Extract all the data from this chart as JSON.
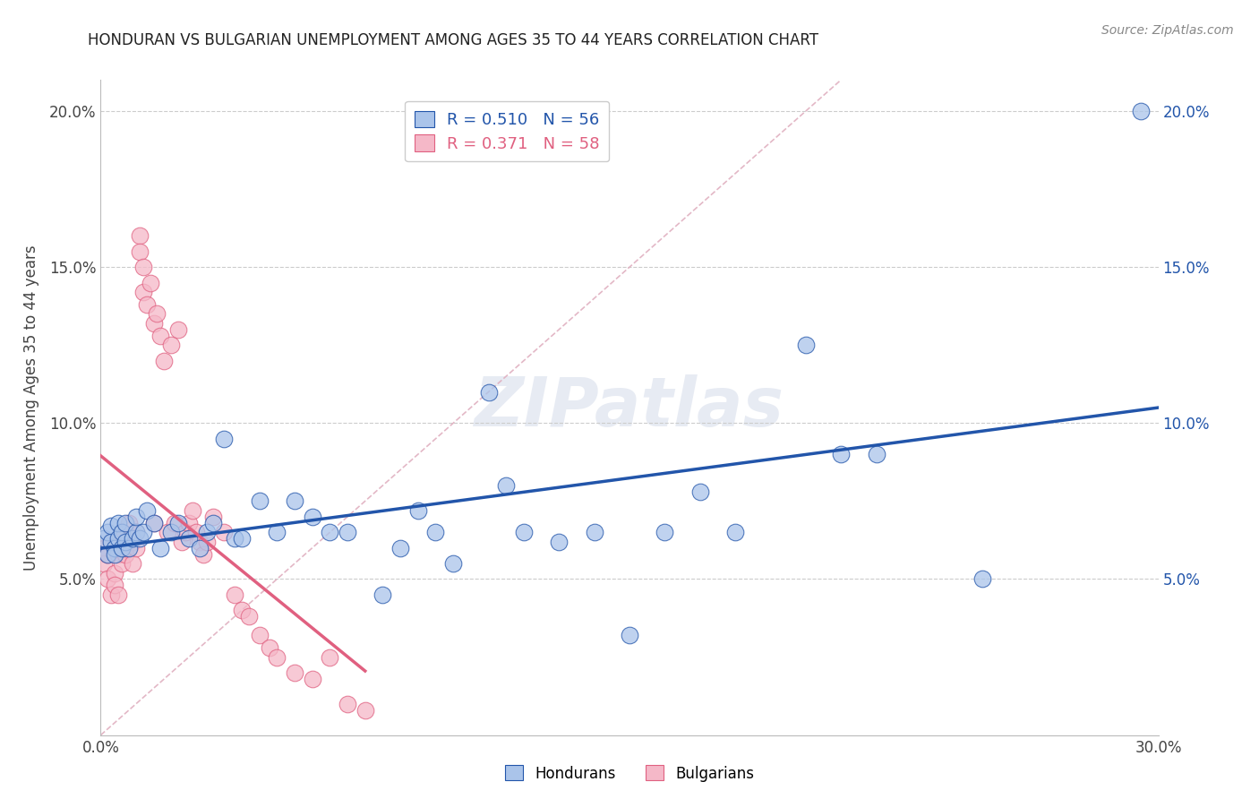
{
  "title": "HONDURAN VS BULGARIAN UNEMPLOYMENT AMONG AGES 35 TO 44 YEARS CORRELATION CHART",
  "source": "Source: ZipAtlas.com",
  "ylabel": "Unemployment Among Ages 35 to 44 years",
  "xlim": [
    0.0,
    0.3
  ],
  "ylim": [
    0.0,
    0.21
  ],
  "xticks": [
    0.0,
    0.05,
    0.1,
    0.15,
    0.2,
    0.25,
    0.3
  ],
  "xticklabels": [
    "0.0%",
    "",
    "",
    "",
    "",
    "",
    "30.0%"
  ],
  "yticks": [
    0.05,
    0.1,
    0.15,
    0.2
  ],
  "yticklabels": [
    "5.0%",
    "10.0%",
    "15.0%",
    "20.0%"
  ],
  "honduran_color": "#aac4ea",
  "bulgarian_color": "#f5b8c8",
  "honduran_line_color": "#2255aa",
  "bulgarian_line_color": "#e06080",
  "diagonal_color": "#e0b0c0",
  "legend_r_honduran": "R = 0.510",
  "legend_n_honduran": "N = 56",
  "legend_r_bulgarian": "R = 0.371",
  "legend_n_bulgarian": "N = 58",
  "hon_x": [
    0.001,
    0.002,
    0.002,
    0.003,
    0.003,
    0.004,
    0.004,
    0.005,
    0.005,
    0.006,
    0.006,
    0.007,
    0.007,
    0.008,
    0.009,
    0.01,
    0.01,
    0.011,
    0.012,
    0.013,
    0.015,
    0.017,
    0.02,
    0.022,
    0.025,
    0.028,
    0.03,
    0.032,
    0.035,
    0.038,
    0.04,
    0.045,
    0.05,
    0.055,
    0.06,
    0.065,
    0.07,
    0.08,
    0.085,
    0.09,
    0.095,
    0.1,
    0.11,
    0.115,
    0.12,
    0.13,
    0.14,
    0.15,
    0.16,
    0.17,
    0.18,
    0.2,
    0.21,
    0.22,
    0.25,
    0.295
  ],
  "hon_y": [
    0.063,
    0.058,
    0.065,
    0.062,
    0.067,
    0.06,
    0.058,
    0.063,
    0.068,
    0.06,
    0.065,
    0.062,
    0.068,
    0.06,
    0.063,
    0.065,
    0.07,
    0.063,
    0.065,
    0.072,
    0.068,
    0.06,
    0.065,
    0.068,
    0.063,
    0.06,
    0.065,
    0.068,
    0.095,
    0.063,
    0.063,
    0.075,
    0.065,
    0.075,
    0.07,
    0.065,
    0.065,
    0.045,
    0.06,
    0.072,
    0.065,
    0.055,
    0.11,
    0.08,
    0.065,
    0.062,
    0.065,
    0.032,
    0.065,
    0.078,
    0.065,
    0.125,
    0.09,
    0.09,
    0.05,
    0.2
  ],
  "bul_x": [
    0.001,
    0.001,
    0.002,
    0.002,
    0.003,
    0.003,
    0.004,
    0.004,
    0.005,
    0.005,
    0.005,
    0.006,
    0.006,
    0.007,
    0.007,
    0.007,
    0.008,
    0.008,
    0.009,
    0.009,
    0.01,
    0.01,
    0.011,
    0.011,
    0.012,
    0.012,
    0.013,
    0.014,
    0.015,
    0.015,
    0.016,
    0.017,
    0.018,
    0.019,
    0.02,
    0.021,
    0.022,
    0.023,
    0.024,
    0.025,
    0.026,
    0.027,
    0.028,
    0.029,
    0.03,
    0.032,
    0.035,
    0.038,
    0.04,
    0.042,
    0.045,
    0.048,
    0.05,
    0.055,
    0.06,
    0.065,
    0.07,
    0.075
  ],
  "bul_y": [
    0.06,
    0.055,
    0.05,
    0.058,
    0.045,
    0.062,
    0.052,
    0.048,
    0.058,
    0.062,
    0.045,
    0.055,
    0.065,
    0.06,
    0.058,
    0.06,
    0.063,
    0.068,
    0.055,
    0.062,
    0.065,
    0.06,
    0.16,
    0.155,
    0.15,
    0.142,
    0.138,
    0.145,
    0.132,
    0.068,
    0.135,
    0.128,
    0.12,
    0.065,
    0.125,
    0.068,
    0.13,
    0.062,
    0.065,
    0.068,
    0.072,
    0.065,
    0.062,
    0.058,
    0.062,
    0.07,
    0.065,
    0.045,
    0.04,
    0.038,
    0.032,
    0.028,
    0.025,
    0.02,
    0.018,
    0.025,
    0.01,
    0.008
  ],
  "watermark": "ZIPatlas",
  "background_color": "#ffffff",
  "grid_color": "#cccccc"
}
